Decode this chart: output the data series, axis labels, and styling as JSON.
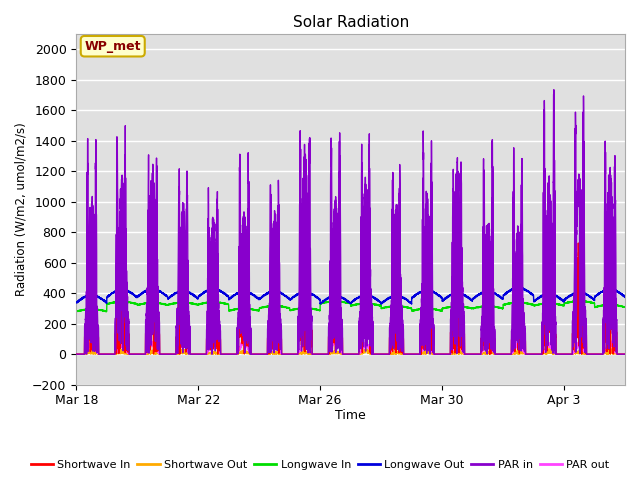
{
  "title": "Solar Radiation",
  "xlabel": "Time",
  "ylabel": "Radiation (W/m2, umol/m2/s)",
  "ylim": [
    -200,
    2100
  ],
  "yticks": [
    -200,
    0,
    200,
    400,
    600,
    800,
    1000,
    1200,
    1400,
    1600,
    1800,
    2000
  ],
  "plot_bg_color": "#e0e0e0",
  "grid_color": "#ffffff",
  "annotation_text": "WP_met",
  "annotation_bg": "#ffffcc",
  "annotation_border": "#ccaa00",
  "annotation_text_color": "#880000",
  "series": {
    "shortwave_in": {
      "color": "#ff0000",
      "label": "Shortwave In",
      "lw": 1.0
    },
    "shortwave_out": {
      "color": "#ffaa00",
      "label": "Shortwave Out",
      "lw": 1.0
    },
    "longwave_in": {
      "color": "#00dd00",
      "label": "Longwave In",
      "lw": 1.0
    },
    "longwave_out": {
      "color": "#0000dd",
      "label": "Longwave Out",
      "lw": 1.0
    },
    "par_in": {
      "color": "#8800cc",
      "label": "PAR in",
      "lw": 1.0
    },
    "par_out": {
      "color": "#ff44ff",
      "label": "PAR out",
      "lw": 1.0
    }
  },
  "xticklabels": [
    "Mar 18",
    "Mar 22",
    "Mar 26",
    "Mar 30",
    "Apr 3"
  ],
  "xtick_days": [
    0,
    4,
    8,
    12,
    16
  ],
  "n_days": 18,
  "pts_per_day": 288,
  "seed": 42
}
